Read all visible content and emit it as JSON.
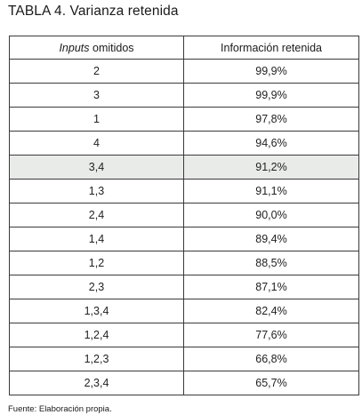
{
  "title": "TABLA 4. Varianza retenida",
  "table": {
    "headers": {
      "col1_italic": "Inputs",
      "col1_rest": " omitidos",
      "col2": "Información retenida"
    },
    "rows": [
      {
        "inputs": "2",
        "info": "99,9%",
        "highlighted": false
      },
      {
        "inputs": "3",
        "info": "99,9%",
        "highlighted": false
      },
      {
        "inputs": "1",
        "info": "97,8%",
        "highlighted": false
      },
      {
        "inputs": "4",
        "info": "94,6%",
        "highlighted": false
      },
      {
        "inputs": "3,4",
        "info": "91,2%",
        "highlighted": true
      },
      {
        "inputs": "1,3",
        "info": "91,1%",
        "highlighted": false
      },
      {
        "inputs": "2,4",
        "info": "90,0%",
        "highlighted": false
      },
      {
        "inputs": "1,4",
        "info": "89,4%",
        "highlighted": false
      },
      {
        "inputs": "1,2",
        "info": "88,5%",
        "highlighted": false
      },
      {
        "inputs": "2,3",
        "info": "87,1%",
        "highlighted": false
      },
      {
        "inputs": "1,3,4",
        "info": "82,4%",
        "highlighted": false
      },
      {
        "inputs": "1,2,4",
        "info": "77,6%",
        "highlighted": false
      },
      {
        "inputs": "1,2,3",
        "info": "66,8%",
        "highlighted": false
      },
      {
        "inputs": "2,3,4",
        "info": "65,7%",
        "highlighted": false
      }
    ]
  },
  "source": "Fuente: Elaboración propia.",
  "colors": {
    "highlight_row": "#e9ebe9",
    "border": "#3a3a3a"
  }
}
